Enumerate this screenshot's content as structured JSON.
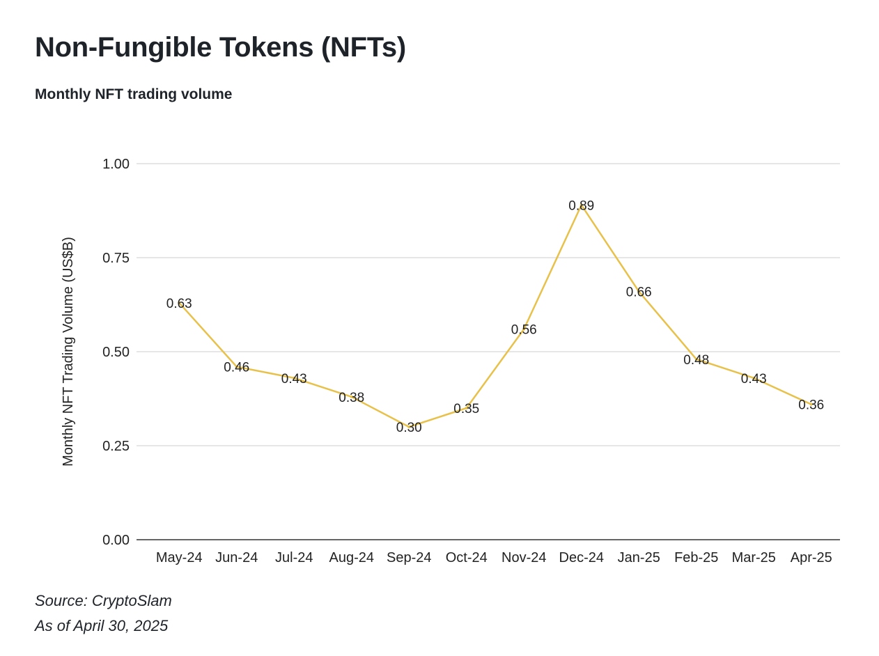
{
  "header": {
    "title": "Non-Fungible Tokens (NFTs)",
    "subtitle": "Monthly NFT trading volume"
  },
  "footer": {
    "source": "Source: CryptoSlam",
    "as_of": "As of April 30, 2025"
  },
  "colors": {
    "line": "#e8c14a",
    "grid": "#cccccc",
    "axis": "#333333"
  },
  "chart_data": {
    "type": "line",
    "categories": [
      "May-24",
      "Jun-24",
      "Jul-24",
      "Aug-24",
      "Sep-24",
      "Oct-24",
      "Nov-24",
      "Dec-24",
      "Jan-25",
      "Feb-25",
      "Mar-25",
      "Apr-25"
    ],
    "series": [
      {
        "values": [
          0.63,
          0.46,
          0.43,
          0.38,
          0.3,
          0.35,
          0.56,
          0.89,
          0.66,
          0.48,
          0.43,
          0.36
        ],
        "labels": [
          "0.63",
          "0.46",
          "0.43",
          "0.38",
          "0.30",
          "0.35",
          "0.56",
          "0.89",
          "0.66",
          "0.48",
          "0.43",
          "0.36"
        ]
      }
    ],
    "title": "Monthly NFT trading volume",
    "xlabel": "",
    "ylabel": "Monthly NFT Trading Volume (US$B)",
    "ylim": [
      0,
      1
    ],
    "yticks": [
      0,
      0.25,
      0.5,
      0.75,
      1.0
    ],
    "ytick_labels": [
      "0.00",
      "0.25",
      "0.50",
      "0.75",
      "1.00"
    ],
    "grid": true,
    "legend": "none"
  }
}
